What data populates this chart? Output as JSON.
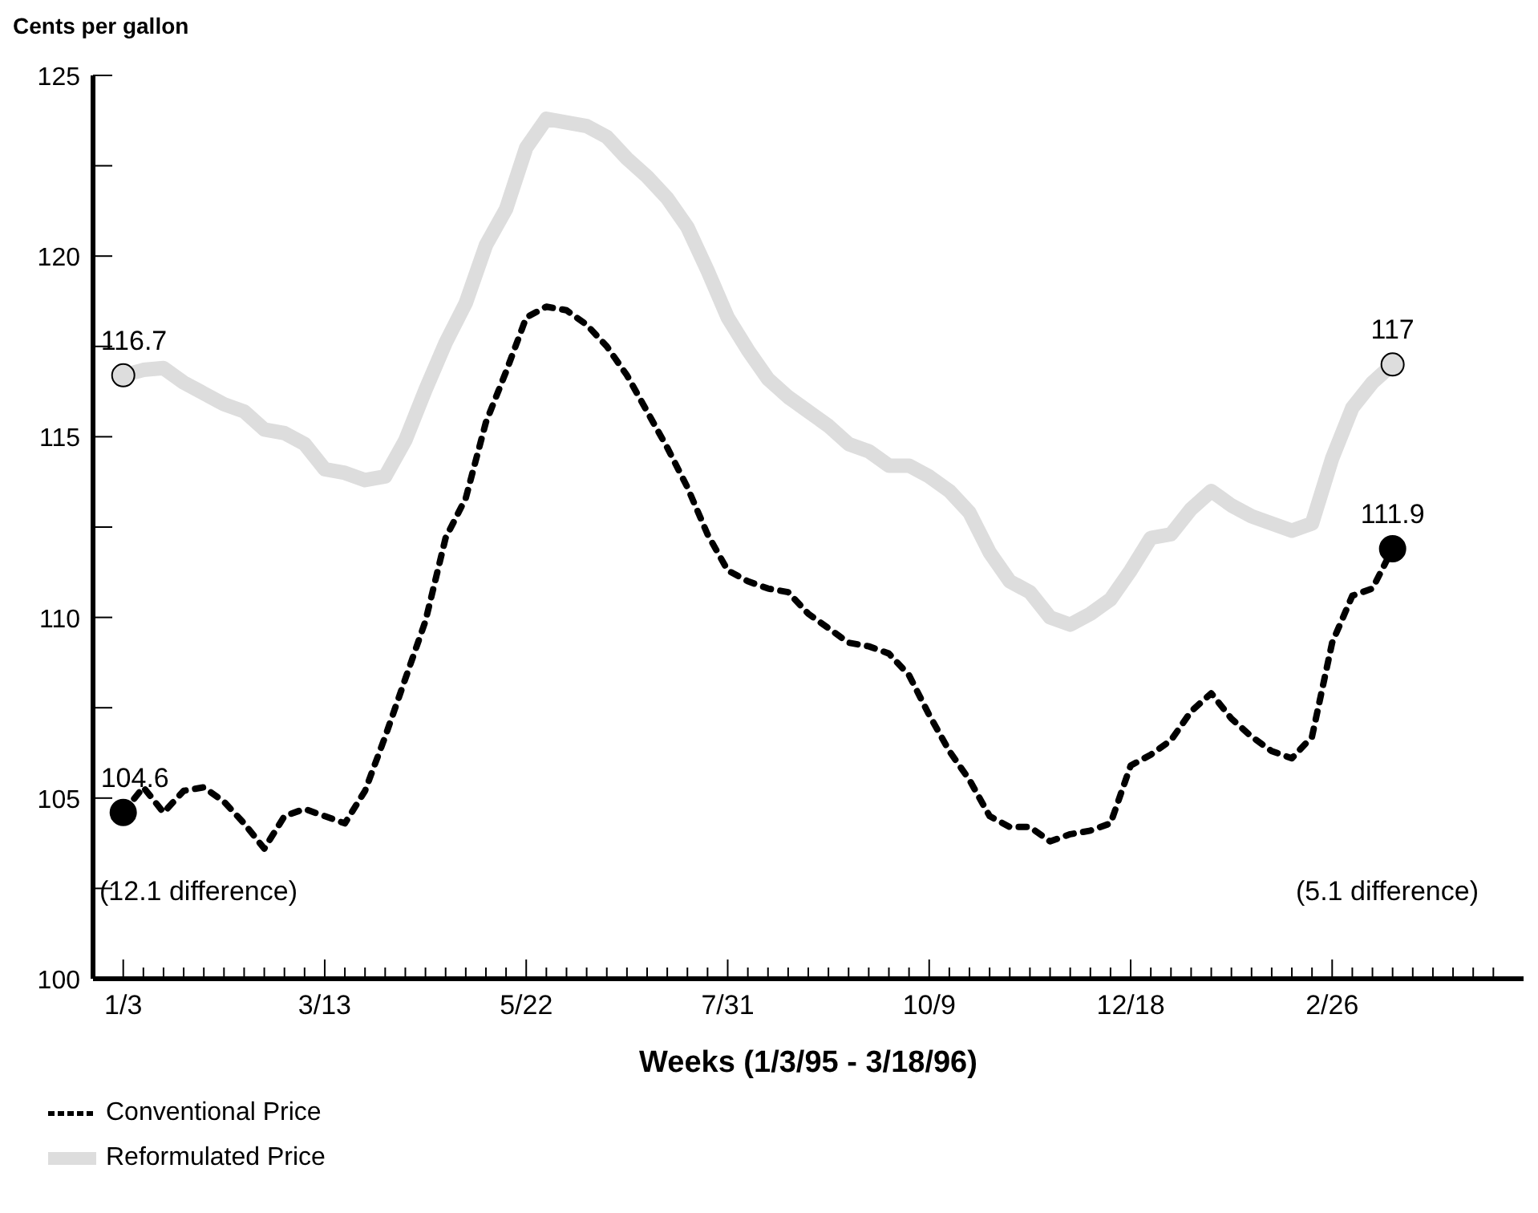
{
  "chart_data": {
    "type": "line",
    "ylabel": "Cents per gallon",
    "xlabel": "Weeks (1/3/95 - 3/18/96)",
    "legend": "bottom",
    "grid": false,
    "ylim": [
      100,
      125
    ],
    "yticks": [
      100,
      {
        "value": 102.5,
        "label": null
      },
      105,
      {
        "value": 107.5,
        "label": null
      },
      110,
      {
        "value": 112.5,
        "label": null
      },
      115,
      {
        "value": 117.5,
        "label": null
      },
      120,
      {
        "value": 122.5,
        "label": null
      },
      125
    ],
    "categories": [
      "1/3",
      null,
      null,
      null,
      null,
      null,
      null,
      null,
      null,
      null,
      "3/13",
      null,
      null,
      null,
      null,
      null,
      null,
      null,
      null,
      null,
      "5/22",
      null,
      null,
      null,
      null,
      null,
      null,
      null,
      null,
      null,
      "7/31",
      null,
      null,
      null,
      null,
      null,
      null,
      null,
      null,
      null,
      "10/9",
      null,
      null,
      null,
      null,
      null,
      null,
      null,
      null,
      null,
      "12/18",
      null,
      null,
      null,
      null,
      null,
      null,
      null,
      null,
      null,
      "2/26",
      null,
      null,
      null,
      null,
      null,
      null,
      null,
      null
    ],
    "series": [
      {
        "name": "Conventional Price",
        "color": "#000000",
        "line_style": "dashed",
        "values": [
          104.6,
          105.3,
          104.6,
          105.2,
          105.3,
          104.9,
          104.3,
          103.6,
          104.5,
          104.7,
          104.5,
          104.3,
          105.2,
          106.7,
          108.3,
          109.9,
          112.2,
          113.3,
          115.4,
          116.8,
          118.3,
          118.6,
          118.5,
          118.1,
          117.5,
          116.7,
          115.7,
          114.7,
          113.6,
          112.3,
          111.3,
          111,
          110.8,
          110.7,
          110.1,
          109.7,
          109.3,
          109.2,
          109,
          108.4,
          107.3,
          106.3,
          105.5,
          104.5,
          104.2,
          104.2,
          103.8,
          104,
          104.1,
          104.3,
          105.9,
          106.2,
          106.6,
          107.4,
          107.9,
          107.2,
          106.7,
          106.3,
          106.1,
          106.7,
          109.3,
          110.6,
          110.8,
          111.9,
          null,
          null,
          null,
          null,
          null
        ],
        "value_labels": [
          "104.6",
          null,
          null,
          null,
          null,
          null,
          null,
          null,
          null,
          null,
          null,
          null,
          null,
          null,
          null,
          null,
          null,
          null,
          null,
          null,
          null,
          null,
          null,
          null,
          null,
          null,
          null,
          null,
          null,
          null,
          null,
          null,
          null,
          null,
          null,
          null,
          null,
          null,
          null,
          null,
          null,
          null,
          null,
          null,
          null,
          null,
          null,
          null,
          null,
          null,
          null,
          null,
          null,
          null,
          null,
          null,
          null,
          null,
          null,
          null,
          null,
          null,
          null,
          "111.9",
          null,
          null,
          null,
          null,
          null
        ]
      },
      {
        "name": "Reformulated Price",
        "color": "#dddddd",
        "line_style": "solid",
        "values": [
          116.7,
          116.85,
          116.9,
          116.5,
          116.2,
          115.9,
          115.7,
          115.2,
          115.1,
          114.8,
          114.1,
          114,
          113.8,
          113.9,
          114.9,
          116.3,
          117.6,
          118.7,
          120.3,
          121.3,
          123,
          123.8,
          123.7,
          123.6,
          123.3,
          122.7,
          122.2,
          121.6,
          120.8,
          119.6,
          118.3,
          117.4,
          116.6,
          116.1,
          115.7,
          115.3,
          114.8,
          114.6,
          114.2,
          114.2,
          113.9,
          113.5,
          112.9,
          111.8,
          111,
          110.7,
          110,
          109.8,
          110.1,
          110.5,
          111.3,
          112.2,
          112.3,
          113,
          113.5,
          113.1,
          112.8,
          112.6,
          112.4,
          112.6,
          114.4,
          115.8,
          116.5,
          117,
          null,
          null,
          null,
          null,
          null
        ],
        "value_labels": [
          "116.7",
          null,
          null,
          null,
          null,
          null,
          null,
          null,
          null,
          null,
          null,
          null,
          null,
          null,
          null,
          null,
          null,
          null,
          null,
          null,
          null,
          null,
          null,
          null,
          null,
          null,
          null,
          null,
          null,
          null,
          null,
          null,
          null,
          null,
          null,
          null,
          null,
          null,
          null,
          null,
          null,
          null,
          null,
          null,
          null,
          null,
          null,
          null,
          null,
          null,
          null,
          null,
          null,
          null,
          null,
          null,
          null,
          null,
          null,
          null,
          null,
          null,
          null,
          "117",
          null,
          null,
          null,
          null,
          null
        ]
      }
    ],
    "annotations": [
      "(12.1 difference)",
      "(5.1 difference)"
    ]
  }
}
